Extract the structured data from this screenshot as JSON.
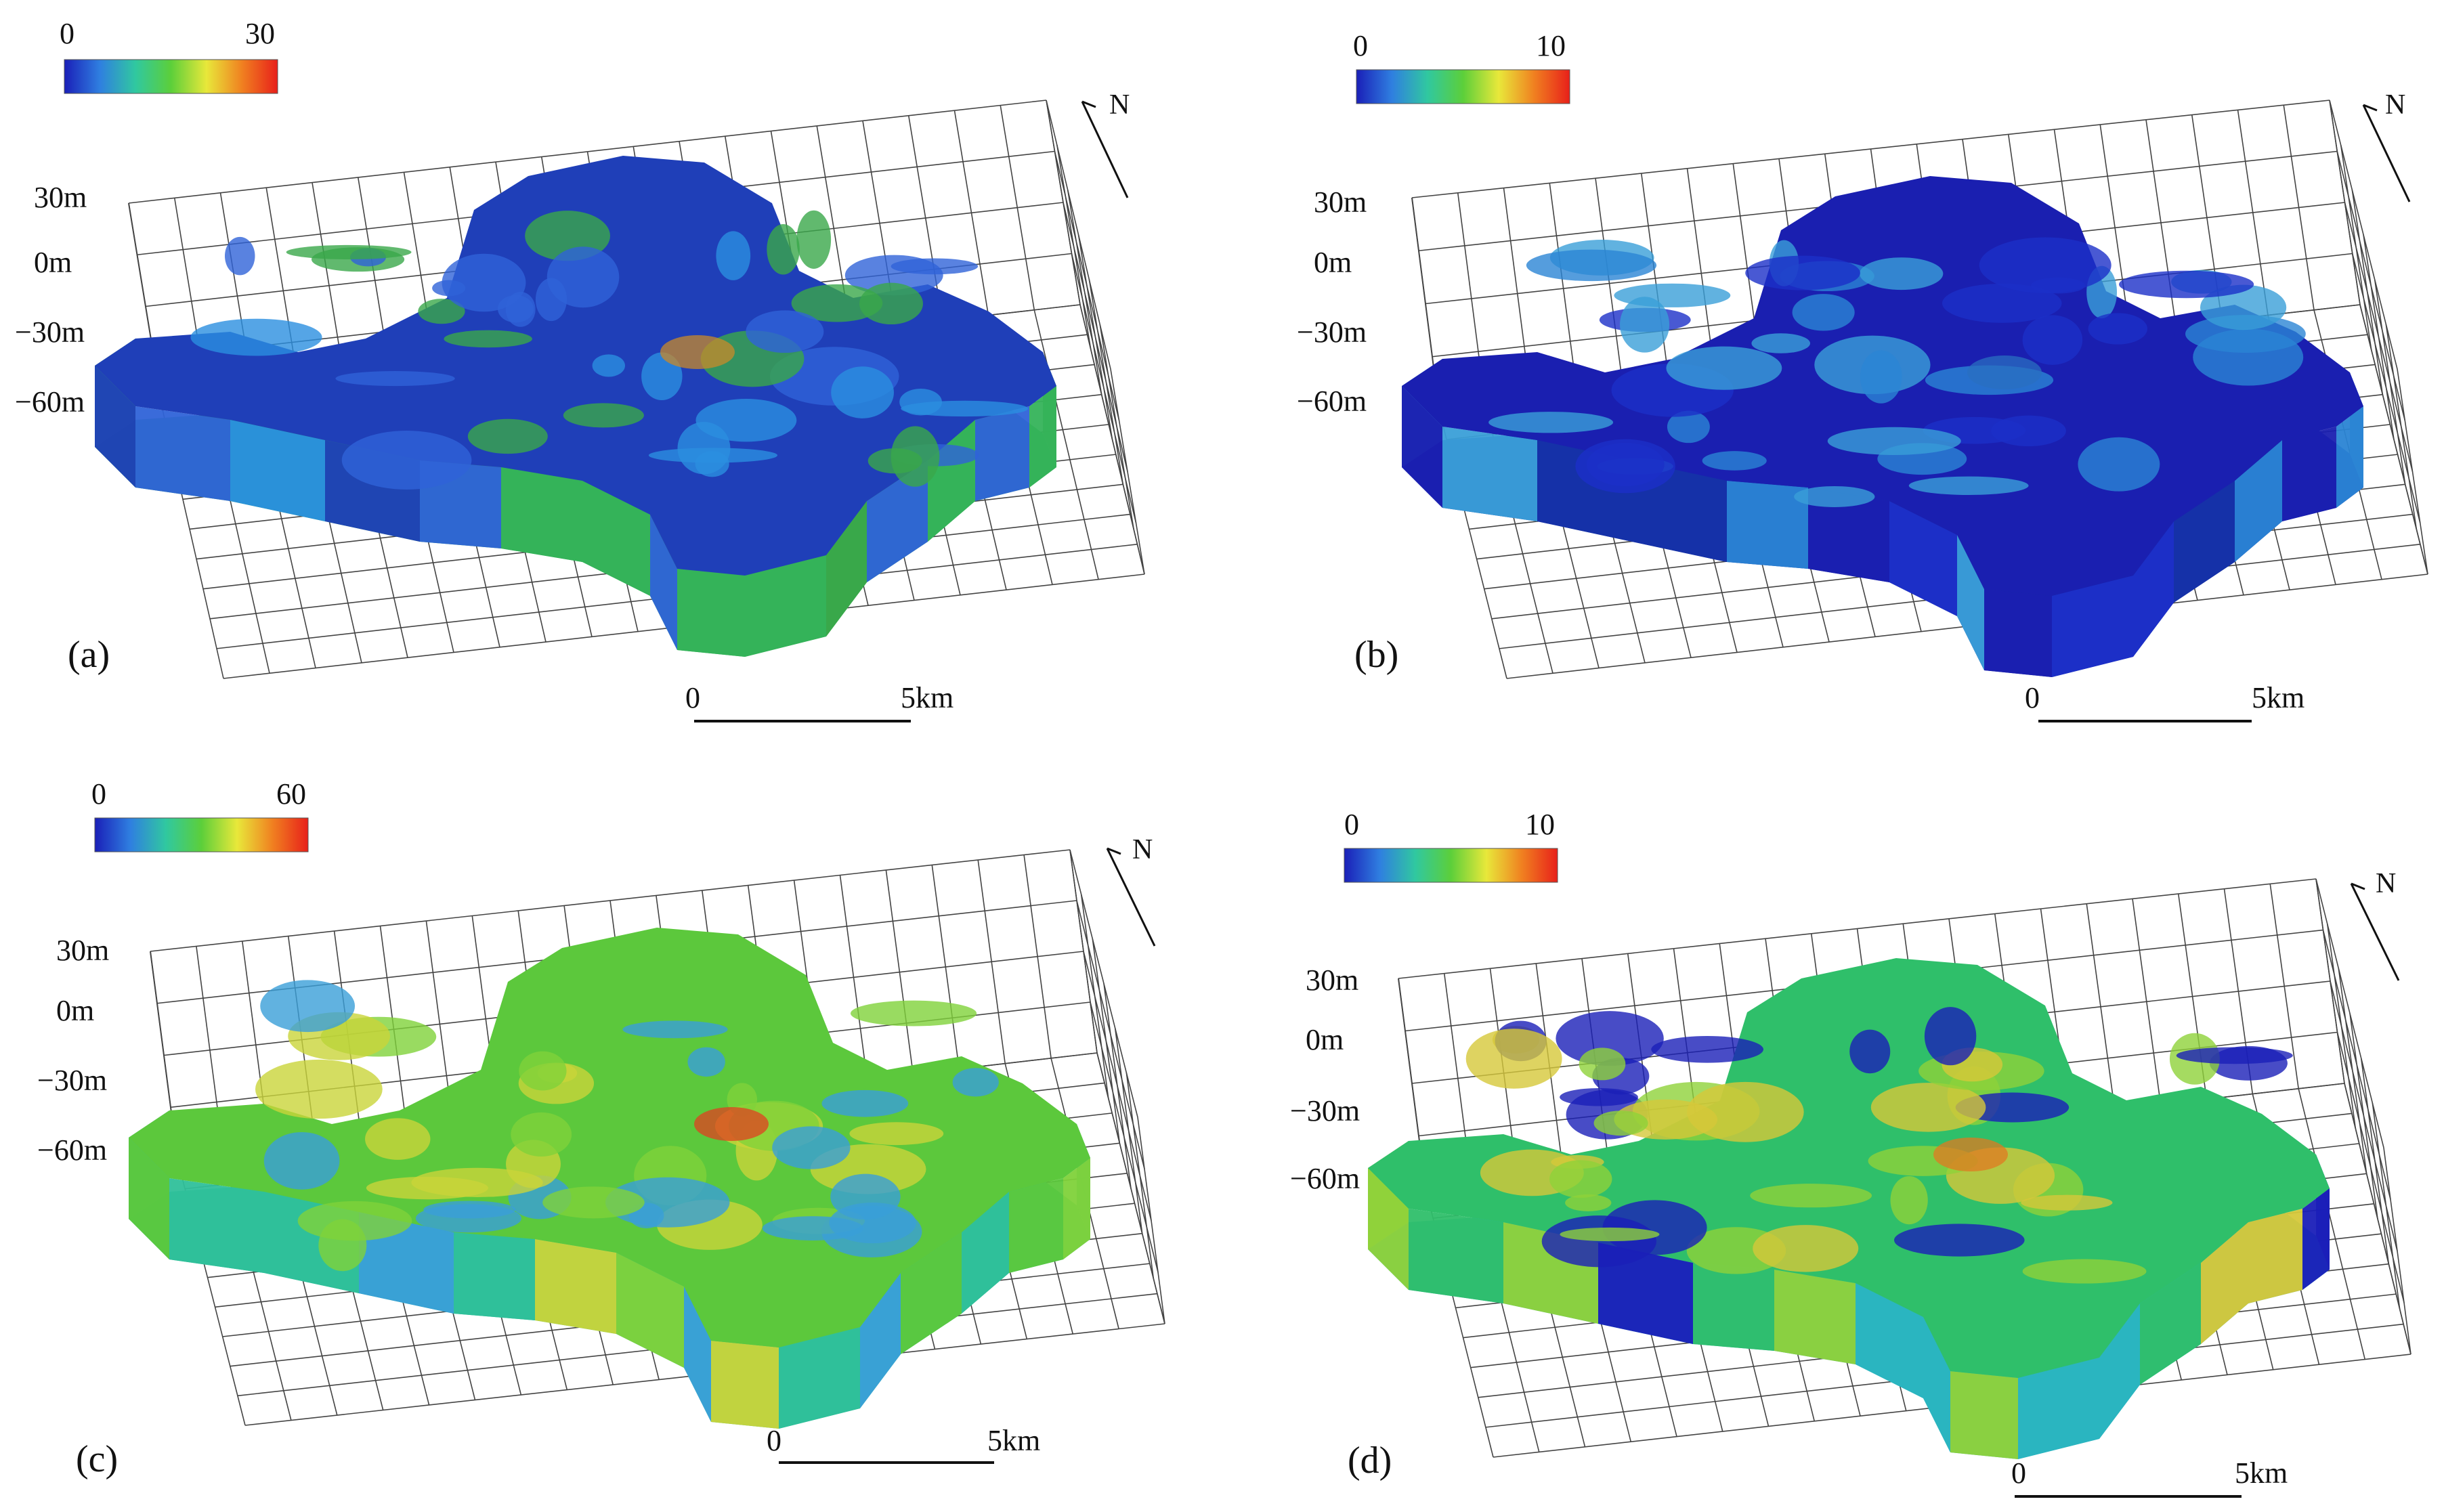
{
  "panels": [
    {
      "id": "a",
      "letter": "(a)",
      "colorbar": {
        "min": "0",
        "max": "30"
      },
      "elevation_labels": [
        "30m",
        "0m",
        "−30m",
        "−60m"
      ],
      "scalebar": {
        "start": "0",
        "end": "5km"
      },
      "north": "N",
      "palette": [
        "#1f3fb8",
        "#2f63d8",
        "#2a8fe0",
        "#3aa84a",
        "#35b35a",
        "#c8892a"
      ]
    },
    {
      "id": "b",
      "letter": "(b)",
      "colorbar": {
        "min": "0",
        "max": "10"
      },
      "elevation_labels": [
        "30m",
        "0m",
        "−30m",
        "−60m"
      ],
      "scalebar": {
        "start": "0",
        "end": "5km"
      },
      "north": "N",
      "palette": [
        "#1a1fb0",
        "#1c2fc8",
        "#2a84d4",
        "#3a9fd8",
        "#1532a8",
        "#2a6fc0"
      ]
    },
    {
      "id": "c",
      "letter": "(c)",
      "colorbar": {
        "min": "0",
        "max": "60"
      },
      "elevation_labels": [
        "30m",
        "0m",
        "−30m",
        "−60m"
      ],
      "scalebar": {
        "start": "0",
        "end": "5km"
      },
      "north": "N",
      "palette": [
        "#5cc83c",
        "#7fd23a",
        "#3a9fd8",
        "#c9d43a",
        "#2fc09a",
        "#e04020"
      ]
    },
    {
      "id": "d",
      "letter": "(d)",
      "colorbar": {
        "min": "0",
        "max": "10"
      },
      "elevation_labels": [
        "30m",
        "0m",
        "−30m",
        "−60m"
      ],
      "scalebar": {
        "start": "0",
        "end": "5km"
      },
      "north": "N",
      "palette": [
        "#2fbf6a",
        "#8fd23a",
        "#1a1fb8",
        "#d6c83a",
        "#2ab5c0",
        "#e07a20"
      ]
    }
  ],
  "colorbar_gradient": [
    "#1a1fb8",
    "#2f7fe0",
    "#30c8a0",
    "#5ccf3a",
    "#e8e83a",
    "#f08020",
    "#e8201a"
  ]
}
